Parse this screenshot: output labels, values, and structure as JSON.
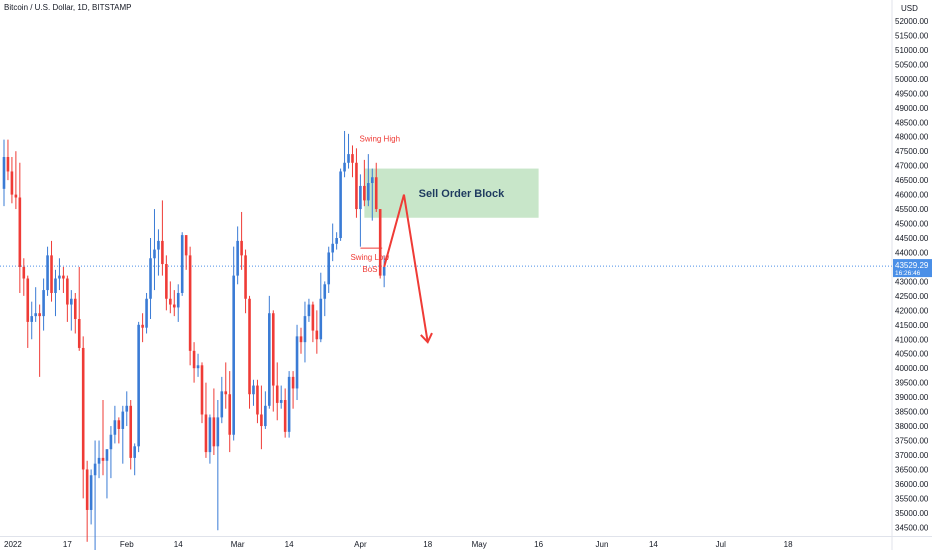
{
  "header": {
    "title": "Bitcoin / U.S. Dollar, 1D, BITSTAMP",
    "currency": "USD"
  },
  "price_label": {
    "price": "43529.29",
    "countdown": "16:26:46",
    "color": "#4a8fe7"
  },
  "colors": {
    "up": "#3a7bd5",
    "down": "#ef3b36",
    "order_block": "#c8e6c9",
    "annotation": "#ef3b36",
    "grid_text": "#131722"
  },
  "chart_data": {
    "type": "candlestick",
    "ylim": [
      34200,
      52450
    ],
    "y_ticks": [
      34500,
      35000,
      35500,
      36000,
      36500,
      37000,
      37500,
      38000,
      38500,
      39000,
      39500,
      40000,
      40500,
      41000,
      41500,
      42000,
      42500,
      43000,
      43500,
      44000,
      44500,
      45000,
      45500,
      46000,
      46500,
      47000,
      47500,
      48000,
      48500,
      49000,
      49500,
      50000,
      50500,
      51000,
      51500,
      52000
    ],
    "x_ticks": [
      {
        "label": "2022",
        "date": "2022-01-01"
      },
      {
        "label": "17",
        "date": "2022-01-17"
      },
      {
        "label": "Feb",
        "date": "2022-02-01"
      },
      {
        "label": "14",
        "date": "2022-02-14"
      },
      {
        "label": "Mar",
        "date": "2022-03-01"
      },
      {
        "label": "14",
        "date": "2022-03-14"
      },
      {
        "label": "Apr",
        "date": "2022-04-01"
      },
      {
        "label": "18",
        "date": "2022-04-18"
      },
      {
        "label": "May",
        "date": "2022-05-01"
      },
      {
        "label": "16",
        "date": "2022-05-16"
      },
      {
        "label": "Jun",
        "date": "2022-06-01"
      },
      {
        "label": "14",
        "date": "2022-06-14"
      },
      {
        "label": "Jul",
        "date": "2022-07-01"
      },
      {
        "label": "18",
        "date": "2022-07-18"
      }
    ],
    "current_price": 43529.29,
    "candles": [
      {
        "date": "2022-01-01",
        "o": 46200,
        "h": 47900,
        "l": 45600,
        "c": 47300
      },
      {
        "date": "2022-01-02",
        "o": 47300,
        "h": 47900,
        "l": 46500,
        "c": 46800
      },
      {
        "date": "2022-01-03",
        "o": 46800,
        "h": 47300,
        "l": 45700,
        "c": 46000
      },
      {
        "date": "2022-01-04",
        "o": 46000,
        "h": 47500,
        "l": 45500,
        "c": 45900
      },
      {
        "date": "2022-01-05",
        "o": 45900,
        "h": 47100,
        "l": 42600,
        "c": 43500
      },
      {
        "date": "2022-01-06",
        "o": 43500,
        "h": 43800,
        "l": 42500,
        "c": 43100
      },
      {
        "date": "2022-01-07",
        "o": 43100,
        "h": 43200,
        "l": 40700,
        "c": 41600
      },
      {
        "date": "2022-01-08",
        "o": 41600,
        "h": 42300,
        "l": 41000,
        "c": 41800
      },
      {
        "date": "2022-01-09",
        "o": 41800,
        "h": 42800,
        "l": 41600,
        "c": 41900
      },
      {
        "date": "2022-01-10",
        "o": 41900,
        "h": 42200,
        "l": 39700,
        "c": 41800
      },
      {
        "date": "2022-01-11",
        "o": 41800,
        "h": 43100,
        "l": 41300,
        "c": 42700
      },
      {
        "date": "2022-01-12",
        "o": 42700,
        "h": 44200,
        "l": 42500,
        "c": 43900
      },
      {
        "date": "2022-01-13",
        "o": 43900,
        "h": 44400,
        "l": 42300,
        "c": 42600
      },
      {
        "date": "2022-01-14",
        "o": 42600,
        "h": 43400,
        "l": 41800,
        "c": 43100
      },
      {
        "date": "2022-01-15",
        "o": 43100,
        "h": 43800,
        "l": 42700,
        "c": 43200
      },
      {
        "date": "2022-01-16",
        "o": 43200,
        "h": 43500,
        "l": 42600,
        "c": 43100
      },
      {
        "date": "2022-01-17",
        "o": 43100,
        "h": 43200,
        "l": 41600,
        "c": 42200
      },
      {
        "date": "2022-01-18",
        "o": 42200,
        "h": 42700,
        "l": 41300,
        "c": 42400
      },
      {
        "date": "2022-01-19",
        "o": 42400,
        "h": 42600,
        "l": 41200,
        "c": 41700
      },
      {
        "date": "2022-01-20",
        "o": 41700,
        "h": 43500,
        "l": 40600,
        "c": 40700
      },
      {
        "date": "2022-01-21",
        "o": 40700,
        "h": 41100,
        "l": 35500,
        "c": 36500
      },
      {
        "date": "2022-01-22",
        "o": 36500,
        "h": 36800,
        "l": 34000,
        "c": 35100
      },
      {
        "date": "2022-01-23",
        "o": 35100,
        "h": 36500,
        "l": 34600,
        "c": 36300
      },
      {
        "date": "2022-01-24",
        "o": 36300,
        "h": 37500,
        "l": 33000,
        "c": 36700
      },
      {
        "date": "2022-01-25",
        "o": 36700,
        "h": 37500,
        "l": 36200,
        "c": 36900
      },
      {
        "date": "2022-01-26",
        "o": 36900,
        "h": 38900,
        "l": 36300,
        "c": 36800
      },
      {
        "date": "2022-01-27",
        "o": 36800,
        "h": 37200,
        "l": 35500,
        "c": 37200
      },
      {
        "date": "2022-01-28",
        "o": 37200,
        "h": 38000,
        "l": 36200,
        "c": 37700
      },
      {
        "date": "2022-01-29",
        "o": 37700,
        "h": 38700,
        "l": 37400,
        "c": 38200
      },
      {
        "date": "2022-01-30",
        "o": 38200,
        "h": 38300,
        "l": 37400,
        "c": 37900
      },
      {
        "date": "2022-01-31",
        "o": 37900,
        "h": 38700,
        "l": 36700,
        "c": 38500
      },
      {
        "date": "2022-02-01",
        "o": 38500,
        "h": 39200,
        "l": 38000,
        "c": 38700
      },
      {
        "date": "2022-02-02",
        "o": 38700,
        "h": 38900,
        "l": 36500,
        "c": 36900
      },
      {
        "date": "2022-02-03",
        "o": 36900,
        "h": 37400,
        "l": 36300,
        "c": 37300
      },
      {
        "date": "2022-02-04",
        "o": 37300,
        "h": 41600,
        "l": 37100,
        "c": 41500
      },
      {
        "date": "2022-02-05",
        "o": 41500,
        "h": 41900,
        "l": 40900,
        "c": 41400
      },
      {
        "date": "2022-02-06",
        "o": 41400,
        "h": 42600,
        "l": 41200,
        "c": 42400
      },
      {
        "date": "2022-02-07",
        "o": 42400,
        "h": 44500,
        "l": 41700,
        "c": 43800
      },
      {
        "date": "2022-02-08",
        "o": 43800,
        "h": 45500,
        "l": 42700,
        "c": 44100
      },
      {
        "date": "2022-02-09",
        "o": 44100,
        "h": 44800,
        "l": 43200,
        "c": 44400
      },
      {
        "date": "2022-02-10",
        "o": 44400,
        "h": 45800,
        "l": 43200,
        "c": 43600
      },
      {
        "date": "2022-02-11",
        "o": 43600,
        "h": 43900,
        "l": 42000,
        "c": 42400
      },
      {
        "date": "2022-02-12",
        "o": 42400,
        "h": 43000,
        "l": 41900,
        "c": 42200
      },
      {
        "date": "2022-02-13",
        "o": 42200,
        "h": 42700,
        "l": 41800,
        "c": 42100
      },
      {
        "date": "2022-02-14",
        "o": 42100,
        "h": 42900,
        "l": 41600,
        "c": 42600
      },
      {
        "date": "2022-02-15",
        "o": 42600,
        "h": 44700,
        "l": 42500,
        "c": 44600
      },
      {
        "date": "2022-02-16",
        "o": 44600,
        "h": 44600,
        "l": 43400,
        "c": 43900
      },
      {
        "date": "2022-02-17",
        "o": 43900,
        "h": 44200,
        "l": 40100,
        "c": 40600
      },
      {
        "date": "2022-02-18",
        "o": 40600,
        "h": 40900,
        "l": 39500,
        "c": 40000
      },
      {
        "date": "2022-02-19",
        "o": 40000,
        "h": 40500,
        "l": 39700,
        "c": 40100
      },
      {
        "date": "2022-02-20",
        "o": 40100,
        "h": 40200,
        "l": 38100,
        "c": 38400
      },
      {
        "date": "2022-02-21",
        "o": 38400,
        "h": 39500,
        "l": 36900,
        "c": 37100
      },
      {
        "date": "2022-02-22",
        "o": 37100,
        "h": 38400,
        "l": 36700,
        "c": 38300
      },
      {
        "date": "2022-02-23",
        "o": 38300,
        "h": 39300,
        "l": 37000,
        "c": 37300
      },
      {
        "date": "2022-02-24",
        "o": 37300,
        "h": 38900,
        "l": 34400,
        "c": 38300
      },
      {
        "date": "2022-02-25",
        "o": 38300,
        "h": 39700,
        "l": 38100,
        "c": 39200
      },
      {
        "date": "2022-02-26",
        "o": 39200,
        "h": 40200,
        "l": 38600,
        "c": 39100
      },
      {
        "date": "2022-02-27",
        "o": 39100,
        "h": 39900,
        "l": 37100,
        "c": 37700
      },
      {
        "date": "2022-02-28",
        "o": 37700,
        "h": 44200,
        "l": 37500,
        "c": 43200
      },
      {
        "date": "2022-03-01",
        "o": 43200,
        "h": 44900,
        "l": 42900,
        "c": 44400
      },
      {
        "date": "2022-03-02",
        "o": 44400,
        "h": 45400,
        "l": 43400,
        "c": 43900
      },
      {
        "date": "2022-03-03",
        "o": 43900,
        "h": 44100,
        "l": 41900,
        "c": 42400
      },
      {
        "date": "2022-03-04",
        "o": 42400,
        "h": 42500,
        "l": 38600,
        "c": 39100
      },
      {
        "date": "2022-03-05",
        "o": 39100,
        "h": 39600,
        "l": 38700,
        "c": 39400
      },
      {
        "date": "2022-03-06",
        "o": 39400,
        "h": 39600,
        "l": 38100,
        "c": 38400
      },
      {
        "date": "2022-03-07",
        "o": 38400,
        "h": 39400,
        "l": 37200,
        "c": 38000
      },
      {
        "date": "2022-03-08",
        "o": 38000,
        "h": 39200,
        "l": 37900,
        "c": 38700
      },
      {
        "date": "2022-03-09",
        "o": 38700,
        "h": 42500,
        "l": 38600,
        "c": 41900
      },
      {
        "date": "2022-03-10",
        "o": 41900,
        "h": 42000,
        "l": 38500,
        "c": 39400
      },
      {
        "date": "2022-03-11",
        "o": 39400,
        "h": 40200,
        "l": 38200,
        "c": 38800
      },
      {
        "date": "2022-03-12",
        "o": 38800,
        "h": 39400,
        "l": 38600,
        "c": 38900
      },
      {
        "date": "2022-03-13",
        "o": 38900,
        "h": 39300,
        "l": 37600,
        "c": 37800
      },
      {
        "date": "2022-03-14",
        "o": 37800,
        "h": 39900,
        "l": 37600,
        "c": 39700
      },
      {
        "date": "2022-03-15",
        "o": 39700,
        "h": 39900,
        "l": 38600,
        "c": 39300
      },
      {
        "date": "2022-03-16",
        "o": 39300,
        "h": 41500,
        "l": 38900,
        "c": 41100
      },
      {
        "date": "2022-03-17",
        "o": 41100,
        "h": 41400,
        "l": 40500,
        "c": 40900
      },
      {
        "date": "2022-03-18",
        "o": 40900,
        "h": 42300,
        "l": 40200,
        "c": 41800
      },
      {
        "date": "2022-03-19",
        "o": 41800,
        "h": 42400,
        "l": 41600,
        "c": 42200
      },
      {
        "date": "2022-03-20",
        "o": 42200,
        "h": 42300,
        "l": 40900,
        "c": 41300
      },
      {
        "date": "2022-03-21",
        "o": 41300,
        "h": 42000,
        "l": 40500,
        "c": 41000
      },
      {
        "date": "2022-03-22",
        "o": 41000,
        "h": 43300,
        "l": 40900,
        "c": 42400
      },
      {
        "date": "2022-03-23",
        "o": 42400,
        "h": 43000,
        "l": 41800,
        "c": 42900
      },
      {
        "date": "2022-03-24",
        "o": 42900,
        "h": 44200,
        "l": 42600,
        "c": 44000
      },
      {
        "date": "2022-03-25",
        "o": 44000,
        "h": 45000,
        "l": 43700,
        "c": 44300
      },
      {
        "date": "2022-03-26",
        "o": 44300,
        "h": 44700,
        "l": 44100,
        "c": 44500
      },
      {
        "date": "2022-03-27",
        "o": 44500,
        "h": 46900,
        "l": 44400,
        "c": 46800
      },
      {
        "date": "2022-03-28",
        "o": 46800,
        "h": 48200,
        "l": 46600,
        "c": 47100
      },
      {
        "date": "2022-03-29",
        "o": 47100,
        "h": 48100,
        "l": 46900,
        "c": 47400
      },
      {
        "date": "2022-03-30",
        "o": 47400,
        "h": 47700,
        "l": 46600,
        "c": 47100
      },
      {
        "date": "2022-03-31",
        "o": 47100,
        "h": 47600,
        "l": 45200,
        "c": 45500
      },
      {
        "date": "2022-04-01",
        "o": 45500,
        "h": 46700,
        "l": 44200,
        "c": 46300
      },
      {
        "date": "2022-04-02",
        "o": 46300,
        "h": 47200,
        "l": 45600,
        "c": 45800
      },
      {
        "date": "2022-04-03",
        "o": 45800,
        "h": 47400,
        "l": 45600,
        "c": 46400
      },
      {
        "date": "2022-04-04",
        "o": 46400,
        "h": 46900,
        "l": 45100,
        "c": 46600
      },
      {
        "date": "2022-04-05",
        "o": 46600,
        "h": 47100,
        "l": 45400,
        "c": 45500
      },
      {
        "date": "2022-04-06",
        "o": 45500,
        "h": 45500,
        "l": 43100,
        "c": 43200
      },
      {
        "date": "2022-04-07",
        "o": 43200,
        "h": 43900,
        "l": 42800,
        "c": 43500
      }
    ],
    "annotations": {
      "swing_high": {
        "text": "Swing High",
        "date": "2022-03-28",
        "price": 47900
      },
      "swing_low": {
        "text": "Swing Low",
        "price": 44150
      },
      "bos": {
        "text": "BoS"
      },
      "order_block": {
        "text": "Sell Order Block",
        "top": 46900,
        "bottom": 45200,
        "date_start": "2022-04-02",
        "date_end": "2022-05-16"
      },
      "projection": [
        {
          "date": "2022-04-07",
          "price": 43500
        },
        {
          "date": "2022-04-12",
          "price": 46000
        },
        {
          "date": "2022-04-18",
          "price": 40900
        }
      ]
    }
  }
}
